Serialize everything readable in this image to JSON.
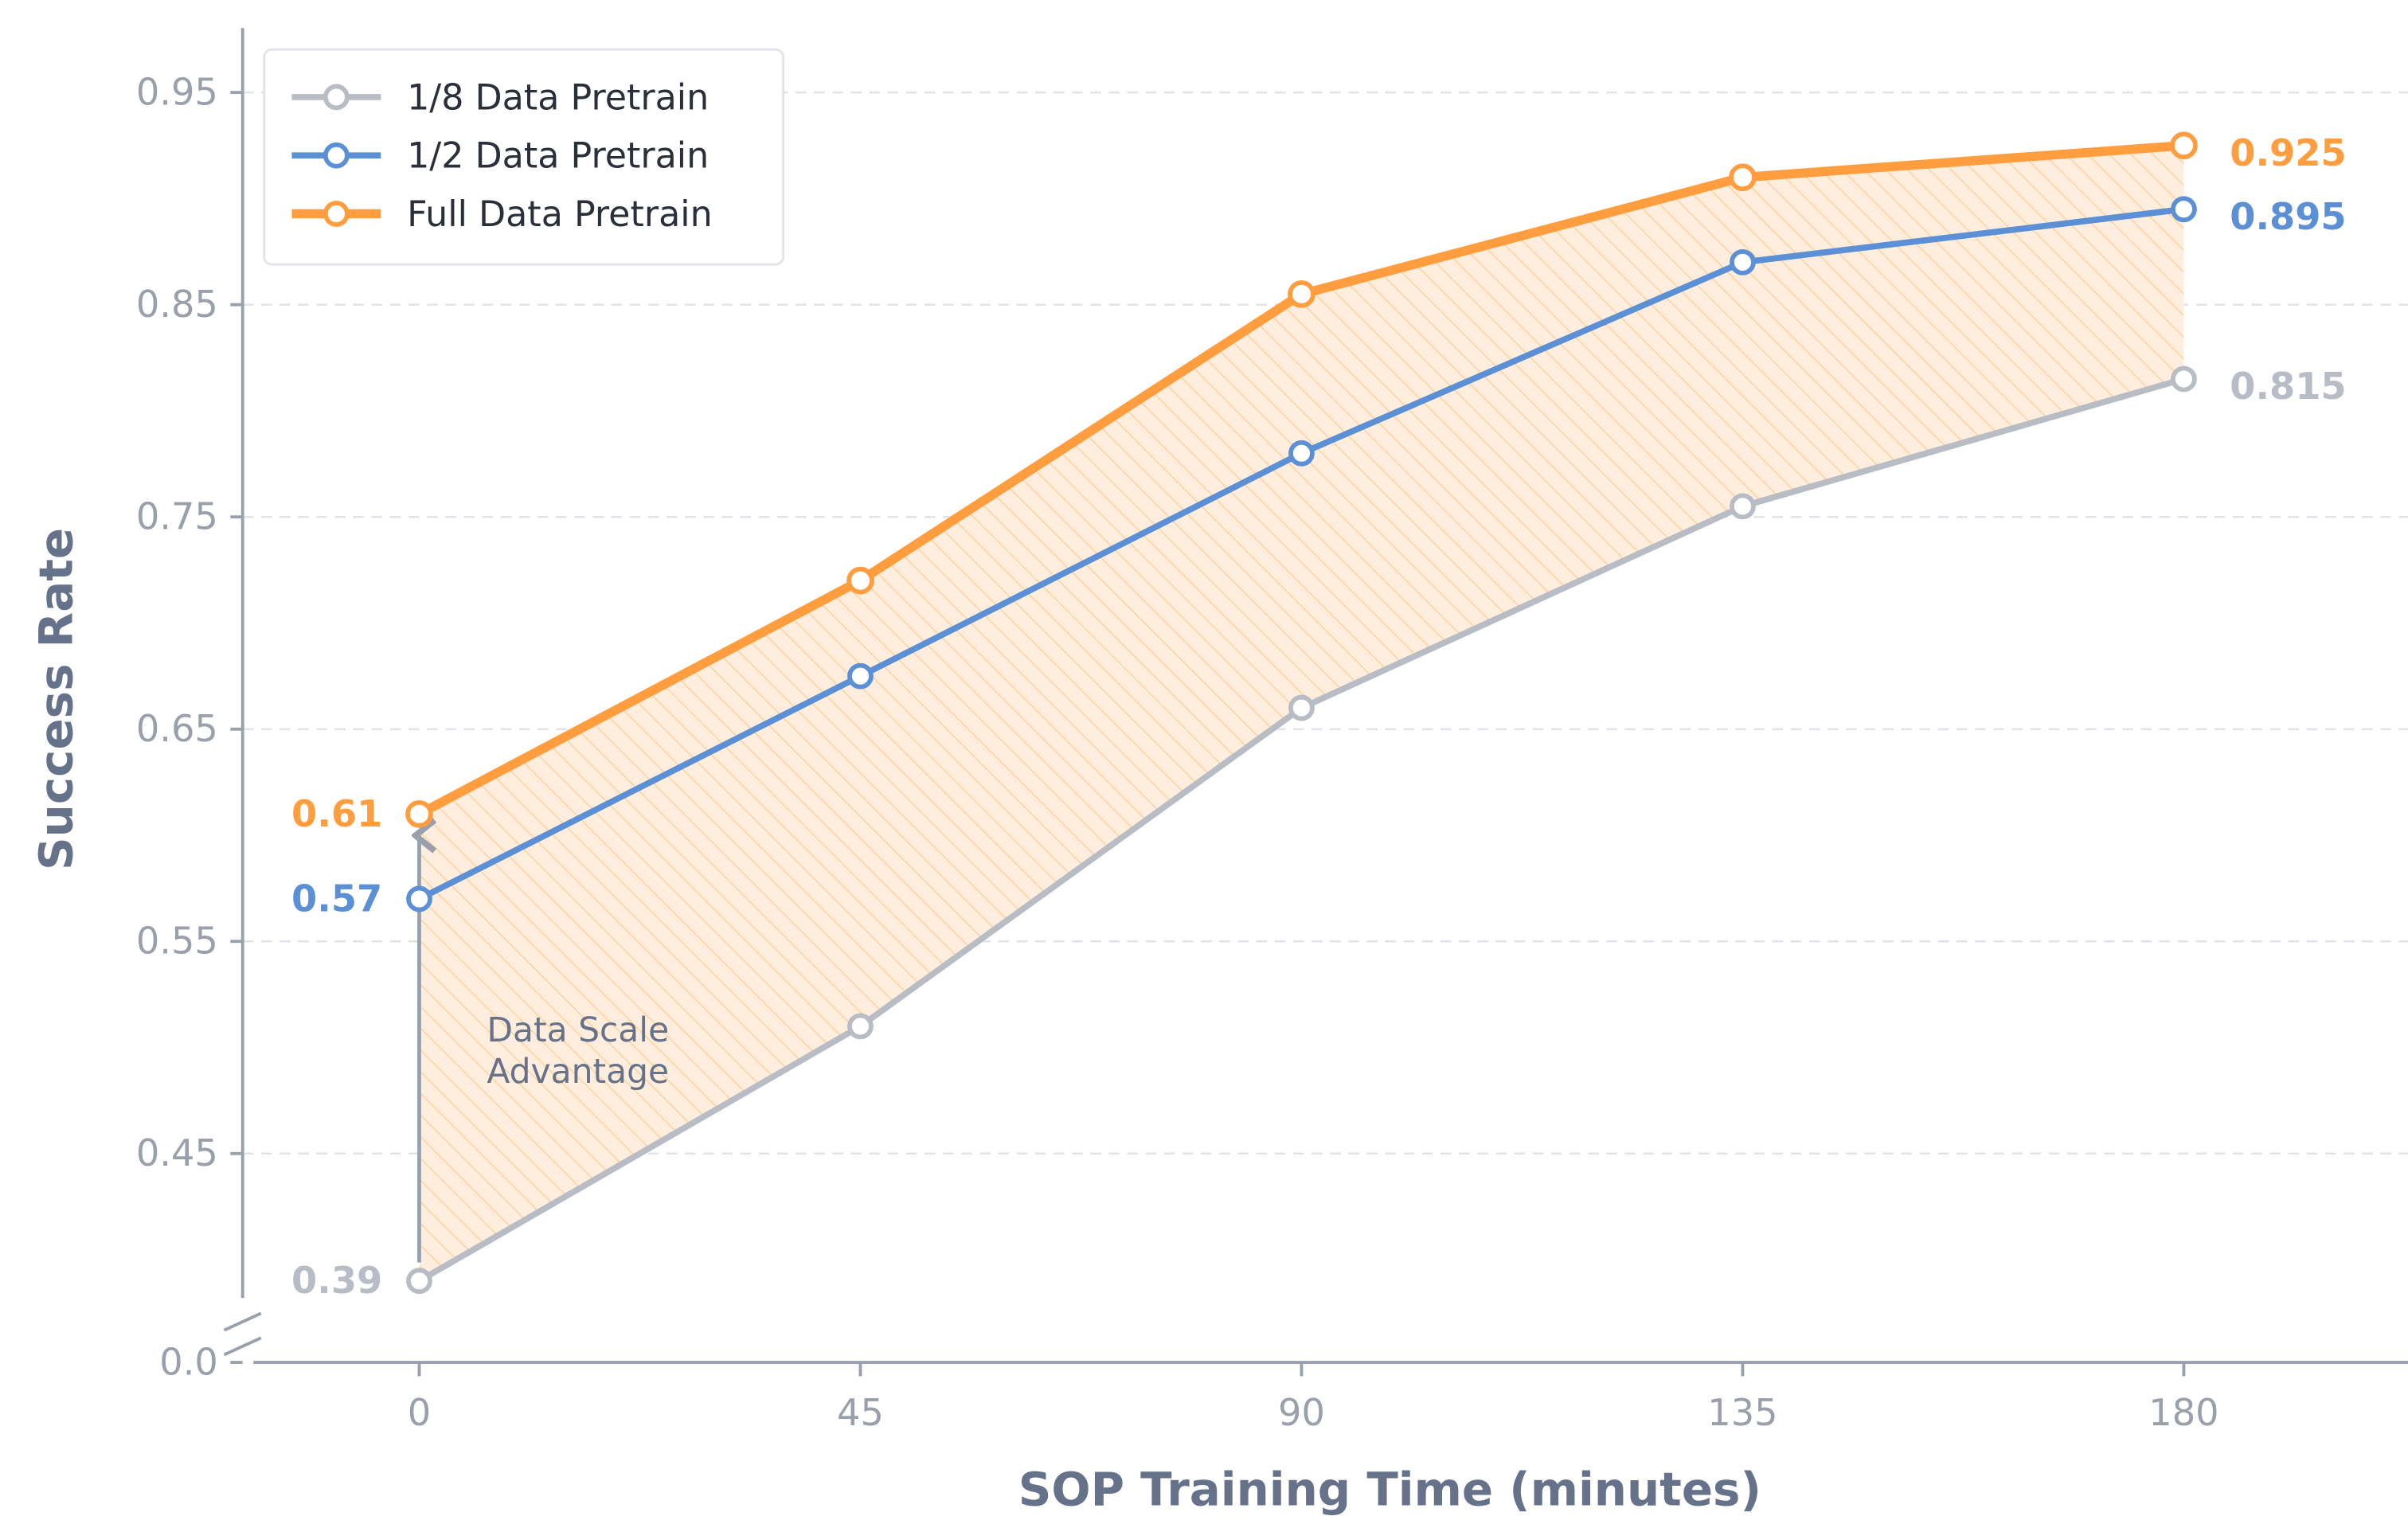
{
  "chart_data": {
    "type": "line",
    "xlabel": "SOP Training Time (minutes)",
    "ylabel": "Success Rate",
    "x": [
      0,
      45,
      90,
      135,
      180
    ],
    "xticks": [
      "0",
      "45",
      "90",
      "135",
      "180"
    ],
    "yticks": [
      "0.0",
      "0.45",
      "0.55",
      "0.65",
      "0.75",
      "0.85",
      "0.95"
    ],
    "ylim": [
      0.0,
      0.97
    ],
    "y_axis_break": true,
    "grid": "horizontal dashed",
    "legend_position": "top-left",
    "series": [
      {
        "name": "1/8 Data Pretrain",
        "color": "#b8bcc4",
        "values": [
          0.39,
          0.51,
          0.66,
          0.755,
          0.815
        ],
        "start_label": "0.39",
        "end_label": "0.815"
      },
      {
        "name": "1/2 Data Pretrain",
        "color": "#5b8fd6",
        "values": [
          0.57,
          0.675,
          0.78,
          0.87,
          0.895
        ],
        "start_label": "0.57",
        "end_label": "0.895"
      },
      {
        "name": "Full Data Pretrain",
        "color": "#ff9d3f",
        "values": [
          0.61,
          0.72,
          0.855,
          0.91,
          0.925
        ],
        "start_label": "0.61",
        "end_label": "0.925"
      }
    ],
    "shaded_region": {
      "between": [
        "1/8 Data Pretrain",
        "Full Data Pretrain"
      ],
      "color": "#ffe9d4",
      "hatch": true
    },
    "annotation": {
      "text_line1": "Data Scale",
      "text_line2": "Advantage",
      "arrow_at_x": 0
    }
  }
}
